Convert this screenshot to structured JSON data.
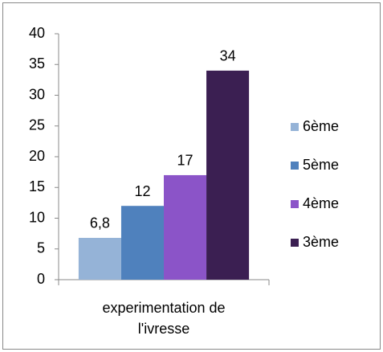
{
  "chart_data": {
    "type": "bar",
    "categories": [
      "experimentation de l'ivresse"
    ],
    "series": [
      {
        "name": "6ème",
        "color": "#95b3d7",
        "values": [
          6.8
        ],
        "value_labels": [
          "6,8"
        ]
      },
      {
        "name": "5ème",
        "color": "#4f81bd",
        "values": [
          12
        ]
      },
      {
        "name": "4ème",
        "color": "#8b54c8",
        "values": [
          17
        ]
      },
      {
        "name": "3ème",
        "color": "#3b1f52",
        "values": [
          34
        ]
      }
    ],
    "ylim": [
      0,
      40
    ],
    "yticks": [
      0,
      5,
      10,
      15,
      20,
      25,
      30,
      35,
      40
    ],
    "grid": false,
    "legend": "right"
  }
}
